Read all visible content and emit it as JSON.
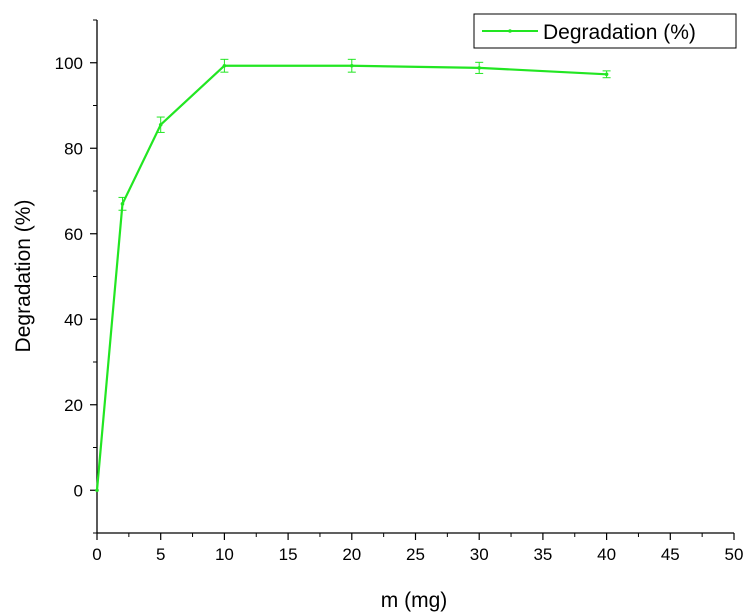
{
  "chart_data": {
    "type": "line",
    "title": "",
    "xlabel": "m (mg)",
    "ylabel": "Degradation (%)",
    "xlim": [
      0,
      50
    ],
    "ylim": [
      -10,
      110
    ],
    "x_ticks": [
      "0",
      "5",
      "10",
      "15",
      "20",
      "25",
      "30",
      "35",
      "40",
      "45",
      "50"
    ],
    "y_ticks": [
      "0",
      "20",
      "40",
      "60",
      "80",
      "100"
    ],
    "grid": false,
    "legend_position": "top-right",
    "series": [
      {
        "name": "Degradation (%)",
        "color": "#22e622",
        "x": [
          0,
          2,
          5,
          10,
          20,
          30,
          40
        ],
        "y": [
          0,
          67,
          85.5,
          99.3,
          99.3,
          98.8,
          97.3
        ],
        "error": [
          0,
          1.5,
          1.8,
          1.5,
          1.5,
          1.3,
          0.8
        ]
      }
    ]
  }
}
